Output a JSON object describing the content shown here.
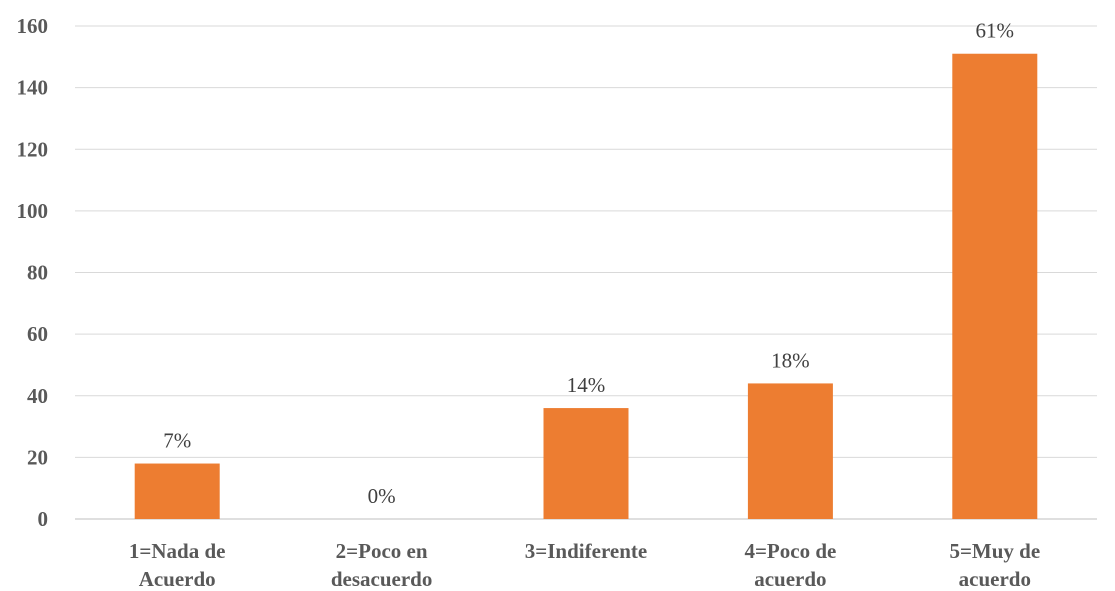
{
  "chart_data": {
    "type": "bar",
    "categories": [
      [
        "1=Nada de",
        "Acuerdo"
      ],
      [
        "2=Poco en",
        "desacuerdo"
      ],
      [
        "3=Indiferente"
      ],
      [
        "4=Poco de",
        "acuerdo"
      ],
      [
        "5=Muy de",
        "acuerdo"
      ]
    ],
    "values": [
      18,
      0,
      36,
      44,
      151
    ],
    "data_labels": [
      "7%",
      "0%",
      "14%",
      "18%",
      "61%"
    ],
    "y_ticks": [
      "0",
      "20",
      "40",
      "60",
      "80",
      "100",
      "120",
      "140",
      "160"
    ],
    "ylim": [
      0,
      160
    ],
    "grid": true,
    "legend": "none",
    "title": "",
    "xlabel": "",
    "ylabel": "",
    "bar_color": "#ED7D31"
  }
}
